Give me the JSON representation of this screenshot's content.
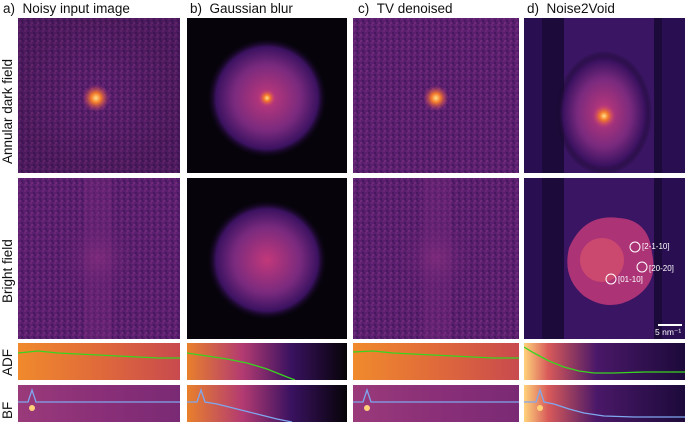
{
  "figure": {
    "columns": [
      {
        "letter": "a)",
        "title": "Noisy input image"
      },
      {
        "letter": "b)",
        "title": "Gaussian blur"
      },
      {
        "letter": "c)",
        "title": "TV denoised"
      },
      {
        "letter": "d)",
        "title": "Noise2Void"
      }
    ],
    "rows": [
      {
        "label": "Annular dark field"
      },
      {
        "label": "Bright field"
      },
      {
        "label": "ADF"
      },
      {
        "label": "BF"
      }
    ],
    "scale_bar": {
      "label": "5 nm⁻¹"
    },
    "spot_labels": [
      "[2-1-10]",
      "[20-20]",
      "[01-10]"
    ],
    "colors": {
      "colormap": "inferno",
      "adf_profile": "#39d41f",
      "bf_profile": "#7fa7ef",
      "circles": "#ffffff"
    }
  }
}
